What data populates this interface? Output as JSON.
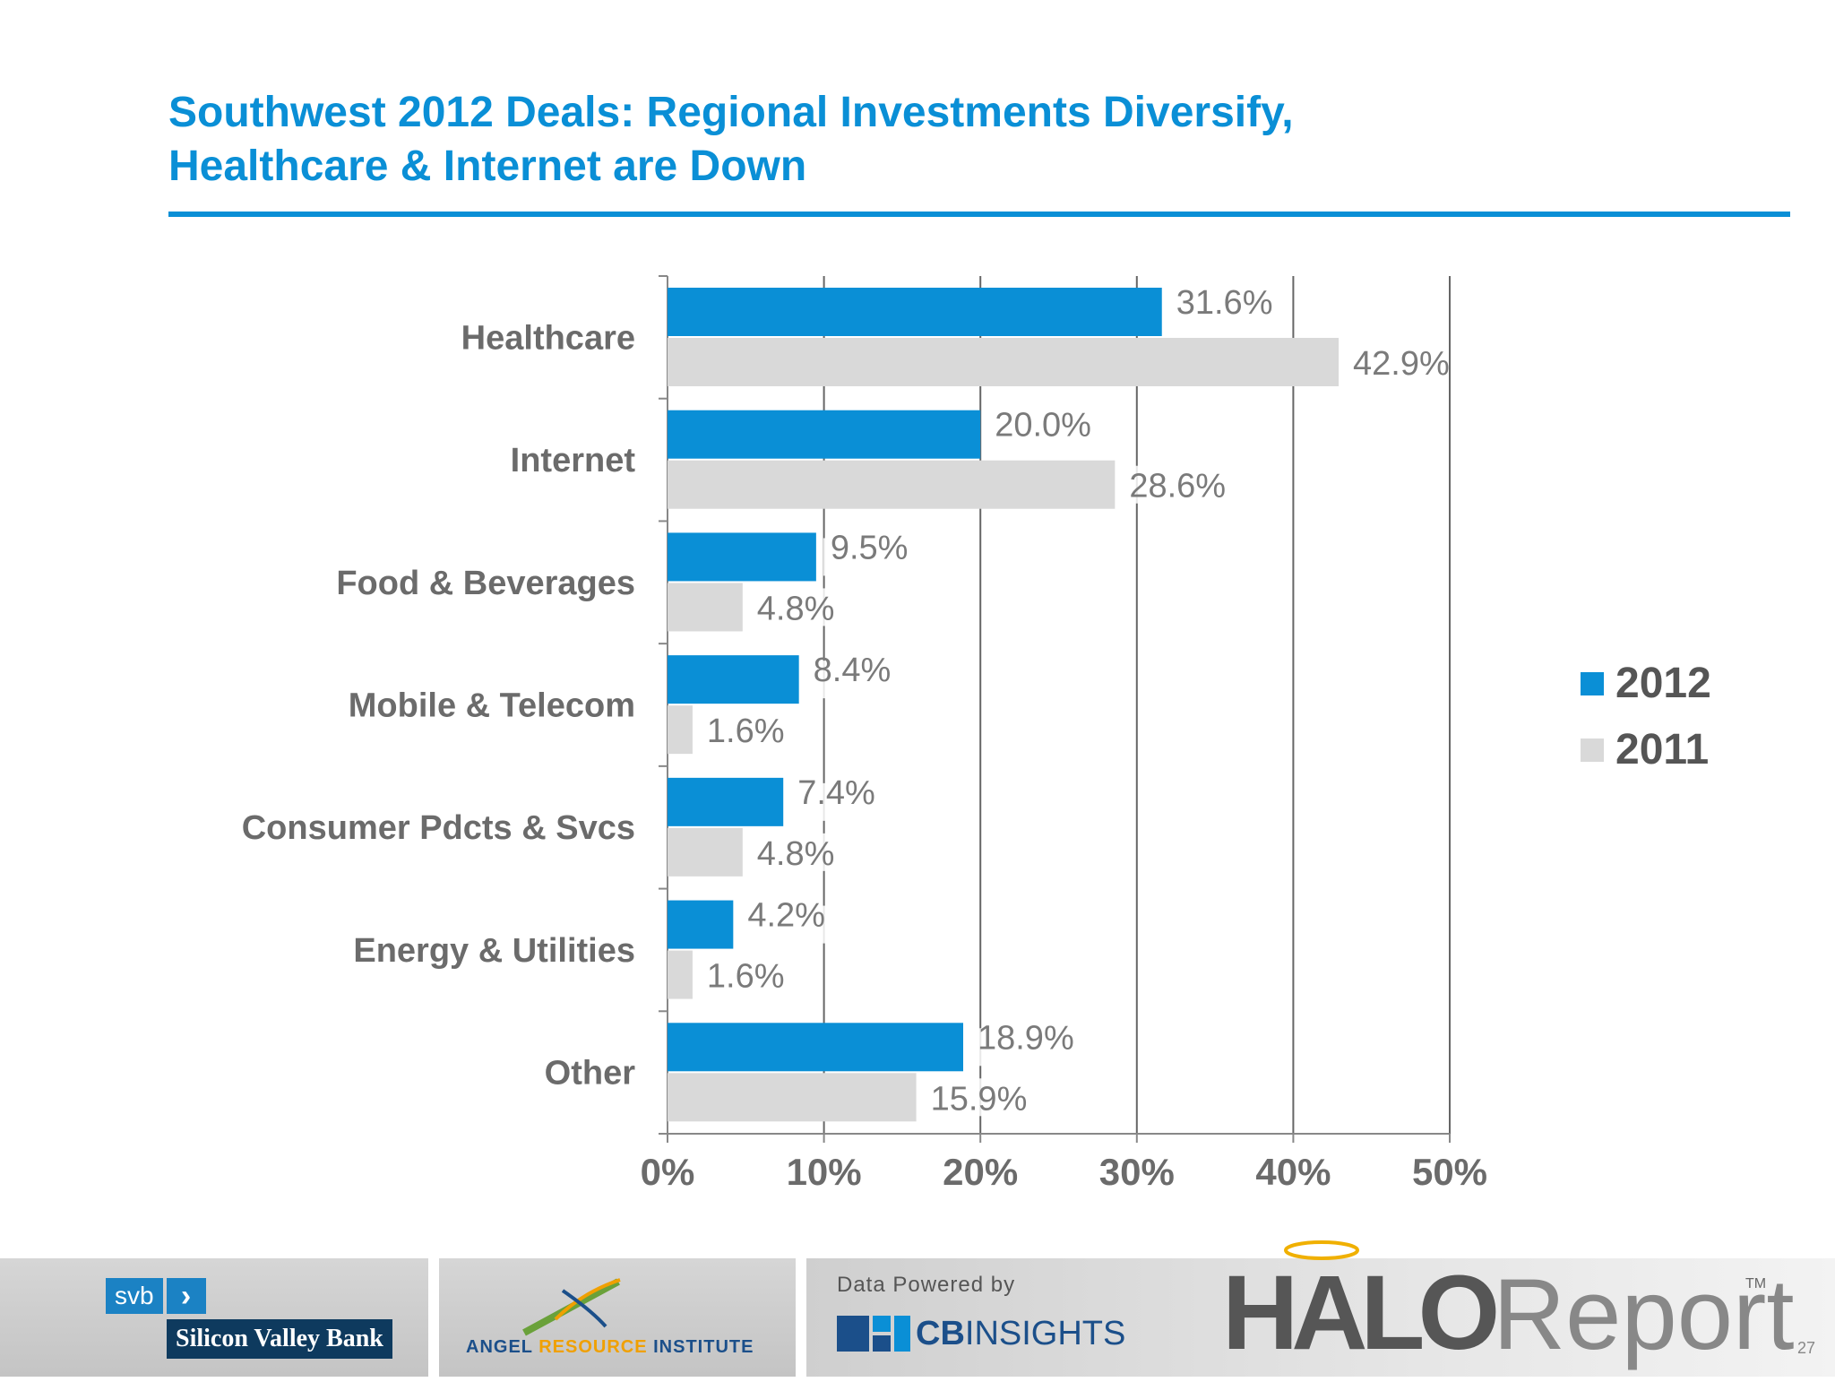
{
  "title": {
    "line1": "Southwest 2012 Deals: Regional Investments Diversify,",
    "line2": "Healthcare & Internet are Down"
  },
  "chart_data": {
    "type": "bar",
    "orientation": "horizontal",
    "categories": [
      "Healthcare",
      "Internet",
      "Food & Beverages",
      "Mobile & Telecom",
      "Consumer Pdcts & Svcs",
      "Energy & Utilities",
      "Other"
    ],
    "series": [
      {
        "name": "2012",
        "color": "#0a8fd6",
        "values": [
          31.6,
          20.0,
          9.5,
          8.4,
          7.4,
          4.2,
          18.9
        ],
        "labels": [
          "31.6%",
          "20.0%",
          "9.5%",
          "8.4%",
          "7.4%",
          "4.2%",
          "18.9%"
        ]
      },
      {
        "name": "2011",
        "color": "#d9d9d9",
        "values": [
          42.9,
          28.6,
          4.8,
          1.6,
          4.8,
          1.6,
          15.9
        ],
        "labels": [
          "42.9%",
          "28.6%",
          "4.8%",
          "1.6%",
          "4.8%",
          "1.6%",
          "15.9%"
        ]
      }
    ],
    "xlim": [
      0,
      50
    ],
    "xticks": [
      0,
      10,
      20,
      30,
      40,
      50
    ],
    "xtick_labels": [
      "0%",
      "10%",
      "20%",
      "30%",
      "40%",
      "50%"
    ],
    "grid": true,
    "legend": "right",
    "title": "",
    "xlabel": "",
    "ylabel": ""
  },
  "footer": {
    "svb_short": "svb",
    "svb_name": "Silicon Valley Bank",
    "ari_part1": "ANGEL ",
    "ari_part2": "RESOURCE",
    "ari_part3": " INSTITUTE",
    "powered_by": "Data Powered by",
    "cb_bold": "CB",
    "cb_rest": "INSIGHTS",
    "halo_bold": "HALO",
    "halo_rest": "Report",
    "trademark": "TM"
  },
  "page_number": "27"
}
